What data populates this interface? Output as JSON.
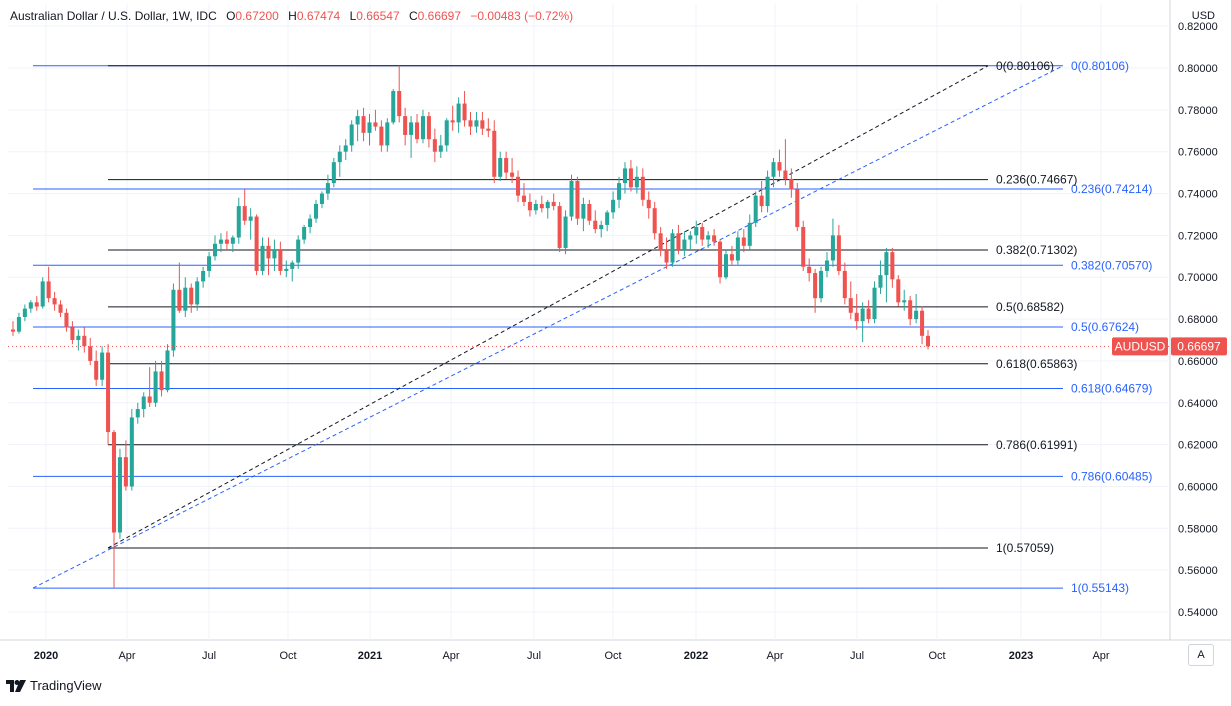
{
  "header": {
    "symbol_title": "Australian Dollar / U.S. Dollar, 1W, IDC",
    "open_label": "O",
    "open": "0.67200",
    "high_label": "H",
    "high": "0.67474",
    "low_label": "L",
    "low": "0.66547",
    "close_label": "C",
    "close": "0.66697",
    "change": "−0.00483 (−0.72%)"
  },
  "axis": {
    "currency": "USD",
    "auto_label": "A"
  },
  "footer": {
    "brand": "TradingView"
  },
  "price_tag": {
    "symbol": "AUDUSD",
    "value": "0.66697"
  },
  "colors": {
    "up": "#26a69a",
    "down": "#ef5350",
    "fib_black": "#131722",
    "fib_blue": "#2962ff",
    "grid": "#f0f3fa"
  },
  "chart_data": {
    "type": "candlestick",
    "y_axis": {
      "min": 0.53,
      "max": 0.82,
      "ticks": [
        "0.82000",
        "0.80000",
        "0.78000",
        "0.76000",
        "0.74000",
        "0.72000",
        "0.70000",
        "0.68000",
        "0.66000",
        "0.64000",
        "0.62000",
        "0.60000",
        "0.58000",
        "0.56000",
        "0.54000"
      ]
    },
    "x_axis": {
      "ticks": [
        "2020",
        "Apr",
        "Jul",
        "Oct",
        "2021",
        "Apr",
        "Jul",
        "Oct",
        "2022",
        "Apr",
        "Jul",
        "Oct",
        "2023",
        "Apr"
      ]
    },
    "fib_black": {
      "color": "#131722",
      "levels": [
        {
          "label": "0(0.80106)",
          "value": 0.80106
        },
        {
          "label": "0.236(0.74667)",
          "value": 0.74667
        },
        {
          "label": "0.382(0.71302)",
          "value": 0.71302
        },
        {
          "label": "0.5(0.68582)",
          "value": 0.68582
        },
        {
          "label": "0.618(0.65863)",
          "value": 0.65863
        },
        {
          "label": "0.786(0.61991)",
          "value": 0.61991
        },
        {
          "label": "1(0.57059)",
          "value": 0.57059
        }
      ]
    },
    "fib_blue": {
      "color": "#2962ff",
      "levels": [
        {
          "label": "0(0.80106)",
          "value": 0.80106
        },
        {
          "label": "0.236(0.74214)",
          "value": 0.74214
        },
        {
          "label": "0.382(0.70570)",
          "value": 0.7057
        },
        {
          "label": "0.5(0.67624)",
          "value": 0.67624
        },
        {
          "label": "0.618(0.64679)",
          "value": 0.64679
        },
        {
          "label": "0.786(0.60485)",
          "value": 0.60485
        },
        {
          "label": "1(0.55143)",
          "value": 0.55143
        }
      ]
    },
    "candles": [
      {
        "o": 0.675,
        "h": 0.679,
        "l": 0.672,
        "c": 0.674
      },
      {
        "o": 0.674,
        "h": 0.683,
        "l": 0.673,
        "c": 0.681
      },
      {
        "o": 0.681,
        "h": 0.687,
        "l": 0.679,
        "c": 0.685
      },
      {
        "o": 0.685,
        "h": 0.689,
        "l": 0.683,
        "c": 0.688
      },
      {
        "o": 0.688,
        "h": 0.691,
        "l": 0.684,
        "c": 0.686
      },
      {
        "o": 0.686,
        "h": 0.7,
        "l": 0.685,
        "c": 0.698
      },
      {
        "o": 0.698,
        "h": 0.705,
        "l": 0.688,
        "c": 0.69
      },
      {
        "o": 0.69,
        "h": 0.693,
        "l": 0.684,
        "c": 0.687
      },
      {
        "o": 0.687,
        "h": 0.689,
        "l": 0.681,
        "c": 0.683
      },
      {
        "o": 0.683,
        "h": 0.685,
        "l": 0.674,
        "c": 0.676
      },
      {
        "o": 0.676,
        "h": 0.679,
        "l": 0.668,
        "c": 0.67
      },
      {
        "o": 0.67,
        "h": 0.675,
        "l": 0.665,
        "c": 0.672
      },
      {
        "o": 0.672,
        "h": 0.676,
        "l": 0.664,
        "c": 0.667
      },
      {
        "o": 0.667,
        "h": 0.671,
        "l": 0.658,
        "c": 0.66
      },
      {
        "o": 0.66,
        "h": 0.665,
        "l": 0.648,
        "c": 0.651
      },
      {
        "o": 0.651,
        "h": 0.667,
        "l": 0.648,
        "c": 0.664
      },
      {
        "o": 0.664,
        "h": 0.668,
        "l": 0.62,
        "c": 0.626
      },
      {
        "o": 0.626,
        "h": 0.627,
        "l": 0.5514,
        "c": 0.578
      },
      {
        "o": 0.578,
        "h": 0.618,
        "l": 0.575,
        "c": 0.614
      },
      {
        "o": 0.614,
        "h": 0.622,
        "l": 0.598,
        "c": 0.6
      },
      {
        "o": 0.6,
        "h": 0.637,
        "l": 0.598,
        "c": 0.633
      },
      {
        "o": 0.633,
        "h": 0.64,
        "l": 0.63,
        "c": 0.637
      },
      {
        "o": 0.637,
        "h": 0.645,
        "l": 0.633,
        "c": 0.643
      },
      {
        "o": 0.643,
        "h": 0.657,
        "l": 0.638,
        "c": 0.64
      },
      {
        "o": 0.64,
        "h": 0.66,
        "l": 0.638,
        "c": 0.655
      },
      {
        "o": 0.655,
        "h": 0.66,
        "l": 0.643,
        "c": 0.646
      },
      {
        "o": 0.646,
        "h": 0.668,
        "l": 0.645,
        "c": 0.665
      },
      {
        "o": 0.665,
        "h": 0.697,
        "l": 0.662,
        "c": 0.694
      },
      {
        "o": 0.694,
        "h": 0.707,
        "l": 0.683,
        "c": 0.684
      },
      {
        "o": 0.684,
        "h": 0.7,
        "l": 0.681,
        "c": 0.695
      },
      {
        "o": 0.695,
        "h": 0.697,
        "l": 0.683,
        "c": 0.687
      },
      {
        "o": 0.687,
        "h": 0.7,
        "l": 0.684,
        "c": 0.698
      },
      {
        "o": 0.698,
        "h": 0.705,
        "l": 0.695,
        "c": 0.703
      },
      {
        "o": 0.703,
        "h": 0.712,
        "l": 0.7,
        "c": 0.71
      },
      {
        "o": 0.71,
        "h": 0.72,
        "l": 0.708,
        "c": 0.716
      },
      {
        "o": 0.716,
        "h": 0.721,
        "l": 0.712,
        "c": 0.718
      },
      {
        "o": 0.718,
        "h": 0.722,
        "l": 0.713,
        "c": 0.716
      },
      {
        "o": 0.716,
        "h": 0.72,
        "l": 0.712,
        "c": 0.719
      },
      {
        "o": 0.719,
        "h": 0.738,
        "l": 0.716,
        "c": 0.734
      },
      {
        "o": 0.734,
        "h": 0.742,
        "l": 0.725,
        "c": 0.727
      },
      {
        "o": 0.727,
        "h": 0.733,
        "l": 0.718,
        "c": 0.729
      },
      {
        "o": 0.729,
        "h": 0.73,
        "l": 0.701,
        "c": 0.703
      },
      {
        "o": 0.703,
        "h": 0.719,
        "l": 0.701,
        "c": 0.715
      },
      {
        "o": 0.715,
        "h": 0.719,
        "l": 0.701,
        "c": 0.709
      },
      {
        "o": 0.709,
        "h": 0.718,
        "l": 0.703,
        "c": 0.713
      },
      {
        "o": 0.713,
        "h": 0.717,
        "l": 0.701,
        "c": 0.703
      },
      {
        "o": 0.703,
        "h": 0.708,
        "l": 0.7,
        "c": 0.704
      },
      {
        "o": 0.704,
        "h": 0.708,
        "l": 0.698,
        "c": 0.707
      },
      {
        "o": 0.707,
        "h": 0.72,
        "l": 0.704,
        "c": 0.718
      },
      {
        "o": 0.718,
        "h": 0.725,
        "l": 0.716,
        "c": 0.724
      },
      {
        "o": 0.724,
        "h": 0.73,
        "l": 0.721,
        "c": 0.728
      },
      {
        "o": 0.728,
        "h": 0.737,
        "l": 0.726,
        "c": 0.735
      },
      {
        "o": 0.735,
        "h": 0.741,
        "l": 0.733,
        "c": 0.74
      },
      {
        "o": 0.74,
        "h": 0.749,
        "l": 0.737,
        "c": 0.745
      },
      {
        "o": 0.745,
        "h": 0.757,
        "l": 0.743,
        "c": 0.755
      },
      {
        "o": 0.755,
        "h": 0.763,
        "l": 0.748,
        "c": 0.76
      },
      {
        "o": 0.76,
        "h": 0.766,
        "l": 0.756,
        "c": 0.763
      },
      {
        "o": 0.763,
        "h": 0.775,
        "l": 0.76,
        "c": 0.773
      },
      {
        "o": 0.773,
        "h": 0.78,
        "l": 0.765,
        "c": 0.777
      },
      {
        "o": 0.777,
        "h": 0.781,
        "l": 0.765,
        "c": 0.769
      },
      {
        "o": 0.769,
        "h": 0.778,
        "l": 0.763,
        "c": 0.774
      },
      {
        "o": 0.774,
        "h": 0.78,
        "l": 0.77,
        "c": 0.772
      },
      {
        "o": 0.772,
        "h": 0.775,
        "l": 0.76,
        "c": 0.763
      },
      {
        "o": 0.763,
        "h": 0.776,
        "l": 0.76,
        "c": 0.774
      },
      {
        "o": 0.774,
        "h": 0.79,
        "l": 0.773,
        "c": 0.789
      },
      {
        "o": 0.789,
        "h": 0.8011,
        "l": 0.774,
        "c": 0.777
      },
      {
        "o": 0.777,
        "h": 0.781,
        "l": 0.763,
        "c": 0.768
      },
      {
        "o": 0.768,
        "h": 0.777,
        "l": 0.757,
        "c": 0.774
      },
      {
        "o": 0.774,
        "h": 0.778,
        "l": 0.764,
        "c": 0.766
      },
      {
        "o": 0.766,
        "h": 0.78,
        "l": 0.764,
        "c": 0.777
      },
      {
        "o": 0.777,
        "h": 0.779,
        "l": 0.762,
        "c": 0.766
      },
      {
        "o": 0.766,
        "h": 0.771,
        "l": 0.755,
        "c": 0.76
      },
      {
        "o": 0.76,
        "h": 0.768,
        "l": 0.757,
        "c": 0.763
      },
      {
        "o": 0.763,
        "h": 0.776,
        "l": 0.76,
        "c": 0.775
      },
      {
        "o": 0.775,
        "h": 0.782,
        "l": 0.77,
        "c": 0.774
      },
      {
        "o": 0.774,
        "h": 0.786,
        "l": 0.769,
        "c": 0.783
      },
      {
        "o": 0.783,
        "h": 0.789,
        "l": 0.772,
        "c": 0.775
      },
      {
        "o": 0.775,
        "h": 0.779,
        "l": 0.768,
        "c": 0.772
      },
      {
        "o": 0.772,
        "h": 0.779,
        "l": 0.769,
        "c": 0.775
      },
      {
        "o": 0.775,
        "h": 0.779,
        "l": 0.768,
        "c": 0.771
      },
      {
        "o": 0.771,
        "h": 0.776,
        "l": 0.767,
        "c": 0.77
      },
      {
        "o": 0.77,
        "h": 0.775,
        "l": 0.745,
        "c": 0.748
      },
      {
        "o": 0.748,
        "h": 0.76,
        "l": 0.746,
        "c": 0.757
      },
      {
        "o": 0.757,
        "h": 0.76,
        "l": 0.747,
        "c": 0.75
      },
      {
        "o": 0.75,
        "h": 0.757,
        "l": 0.745,
        "c": 0.748
      },
      {
        "o": 0.748,
        "h": 0.751,
        "l": 0.736,
        "c": 0.739
      },
      {
        "o": 0.739,
        "h": 0.745,
        "l": 0.734,
        "c": 0.736
      },
      {
        "o": 0.736,
        "h": 0.74,
        "l": 0.729,
        "c": 0.732
      },
      {
        "o": 0.732,
        "h": 0.737,
        "l": 0.73,
        "c": 0.735
      },
      {
        "o": 0.735,
        "h": 0.739,
        "l": 0.731,
        "c": 0.733
      },
      {
        "o": 0.733,
        "h": 0.737,
        "l": 0.728,
        "c": 0.736
      },
      {
        "o": 0.736,
        "h": 0.74,
        "l": 0.732,
        "c": 0.734
      },
      {
        "o": 0.734,
        "h": 0.736,
        "l": 0.712,
        "c": 0.714
      },
      {
        "o": 0.714,
        "h": 0.732,
        "l": 0.711,
        "c": 0.729
      },
      {
        "o": 0.729,
        "h": 0.749,
        "l": 0.727,
        "c": 0.746
      },
      {
        "o": 0.746,
        "h": 0.748,
        "l": 0.725,
        "c": 0.728
      },
      {
        "o": 0.728,
        "h": 0.738,
        "l": 0.722,
        "c": 0.735
      },
      {
        "o": 0.735,
        "h": 0.737,
        "l": 0.725,
        "c": 0.727
      },
      {
        "o": 0.727,
        "h": 0.732,
        "l": 0.721,
        "c": 0.723
      },
      {
        "o": 0.723,
        "h": 0.727,
        "l": 0.719,
        "c": 0.725
      },
      {
        "o": 0.725,
        "h": 0.732,
        "l": 0.722,
        "c": 0.731
      },
      {
        "o": 0.731,
        "h": 0.741,
        "l": 0.728,
        "c": 0.737
      },
      {
        "o": 0.737,
        "h": 0.748,
        "l": 0.733,
        "c": 0.745
      },
      {
        "o": 0.745,
        "h": 0.755,
        "l": 0.74,
        "c": 0.752
      },
      {
        "o": 0.752,
        "h": 0.756,
        "l": 0.741,
        "c": 0.743
      },
      {
        "o": 0.743,
        "h": 0.753,
        "l": 0.74,
        "c": 0.748
      },
      {
        "o": 0.748,
        "h": 0.752,
        "l": 0.734,
        "c": 0.737
      },
      {
        "o": 0.737,
        "h": 0.741,
        "l": 0.728,
        "c": 0.733
      },
      {
        "o": 0.733,
        "h": 0.736,
        "l": 0.718,
        "c": 0.721
      },
      {
        "o": 0.721,
        "h": 0.724,
        "l": 0.71,
        "c": 0.713
      },
      {
        "o": 0.713,
        "h": 0.719,
        "l": 0.704,
        "c": 0.707
      },
      {
        "o": 0.707,
        "h": 0.723,
        "l": 0.705,
        "c": 0.721
      },
      {
        "o": 0.721,
        "h": 0.725,
        "l": 0.711,
        "c": 0.713
      },
      {
        "o": 0.713,
        "h": 0.722,
        "l": 0.71,
        "c": 0.718
      },
      {
        "o": 0.718,
        "h": 0.722,
        "l": 0.713,
        "c": 0.72
      },
      {
        "o": 0.72,
        "h": 0.727,
        "l": 0.716,
        "c": 0.724
      },
      {
        "o": 0.724,
        "h": 0.726,
        "l": 0.715,
        "c": 0.718
      },
      {
        "o": 0.718,
        "h": 0.722,
        "l": 0.714,
        "c": 0.72
      },
      {
        "o": 0.72,
        "h": 0.723,
        "l": 0.715,
        "c": 0.717
      },
      {
        "o": 0.717,
        "h": 0.718,
        "l": 0.697,
        "c": 0.7
      },
      {
        "o": 0.7,
        "h": 0.713,
        "l": 0.699,
        "c": 0.711
      },
      {
        "o": 0.711,
        "h": 0.715,
        "l": 0.706,
        "c": 0.708
      },
      {
        "o": 0.708,
        "h": 0.722,
        "l": 0.706,
        "c": 0.719
      },
      {
        "o": 0.719,
        "h": 0.723,
        "l": 0.712,
        "c": 0.715
      },
      {
        "o": 0.715,
        "h": 0.73,
        "l": 0.713,
        "c": 0.726
      },
      {
        "o": 0.726,
        "h": 0.741,
        "l": 0.724,
        "c": 0.739
      },
      {
        "o": 0.739,
        "h": 0.746,
        "l": 0.731,
        "c": 0.734
      },
      {
        "o": 0.734,
        "h": 0.751,
        "l": 0.731,
        "c": 0.748
      },
      {
        "o": 0.748,
        "h": 0.757,
        "l": 0.743,
        "c": 0.755
      },
      {
        "o": 0.755,
        "h": 0.761,
        "l": 0.748,
        "c": 0.751
      },
      {
        "o": 0.751,
        "h": 0.766,
        "l": 0.744,
        "c": 0.747
      },
      {
        "o": 0.747,
        "h": 0.752,
        "l": 0.738,
        "c": 0.742
      },
      {
        "o": 0.742,
        "h": 0.745,
        "l": 0.722,
        "c": 0.724
      },
      {
        "o": 0.724,
        "h": 0.727,
        "l": 0.703,
        "c": 0.705
      },
      {
        "o": 0.705,
        "h": 0.709,
        "l": 0.698,
        "c": 0.702
      },
      {
        "o": 0.702,
        "h": 0.704,
        "l": 0.683,
        "c": 0.69
      },
      {
        "o": 0.69,
        "h": 0.705,
        "l": 0.688,
        "c": 0.703
      },
      {
        "o": 0.703,
        "h": 0.712,
        "l": 0.7,
        "c": 0.708
      },
      {
        "o": 0.708,
        "h": 0.728,
        "l": 0.705,
        "c": 0.72
      },
      {
        "o": 0.72,
        "h": 0.725,
        "l": 0.701,
        "c": 0.703
      },
      {
        "o": 0.703,
        "h": 0.707,
        "l": 0.687,
        "c": 0.69
      },
      {
        "o": 0.69,
        "h": 0.698,
        "l": 0.68,
        "c": 0.683
      },
      {
        "o": 0.683,
        "h": 0.692,
        "l": 0.675,
        "c": 0.679
      },
      {
        "o": 0.679,
        "h": 0.688,
        "l": 0.669,
        "c": 0.685
      },
      {
        "o": 0.685,
        "h": 0.689,
        "l": 0.678,
        "c": 0.68
      },
      {
        "o": 0.68,
        "h": 0.698,
        "l": 0.678,
        "c": 0.695
      },
      {
        "o": 0.695,
        "h": 0.708,
        "l": 0.692,
        "c": 0.701
      },
      {
        "o": 0.701,
        "h": 0.714,
        "l": 0.688,
        "c": 0.712
      },
      {
        "o": 0.712,
        "h": 0.714,
        "l": 0.695,
        "c": 0.699
      },
      {
        "o": 0.699,
        "h": 0.701,
        "l": 0.686,
        "c": 0.688
      },
      {
        "o": 0.688,
        "h": 0.694,
        "l": 0.684,
        "c": 0.689
      },
      {
        "o": 0.689,
        "h": 0.691,
        "l": 0.677,
        "c": 0.68
      },
      {
        "o": 0.68,
        "h": 0.692,
        "l": 0.678,
        "c": 0.684
      },
      {
        "o": 0.684,
        "h": 0.686,
        "l": 0.668,
        "c": 0.672
      },
      {
        "o": 0.672,
        "h": 0.6747,
        "l": 0.6655,
        "c": 0.66697
      }
    ]
  }
}
